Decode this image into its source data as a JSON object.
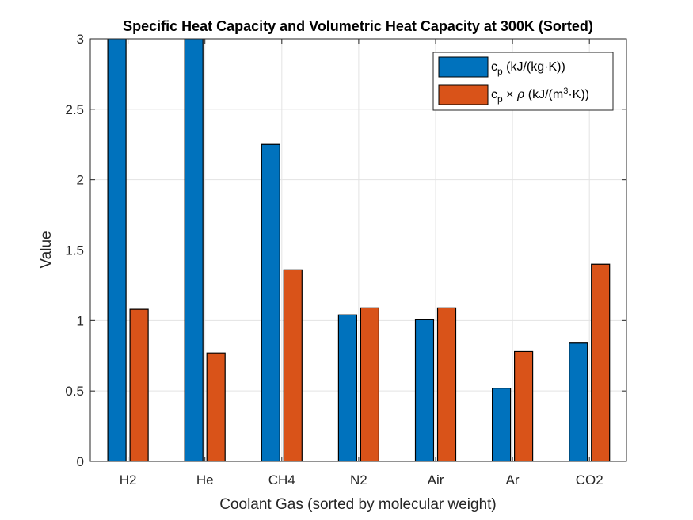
{
  "chart_data": {
    "type": "bar",
    "title": "Specific Heat Capacity and Volumetric Heat Capacity at 300K (Sorted)",
    "xlabel": "Coolant Gas (sorted by molecular weight)",
    "ylabel": "Value",
    "ylim": [
      0,
      3
    ],
    "yticks": [
      0,
      0.5,
      1,
      1.5,
      2,
      2.5,
      3
    ],
    "ytick_labels": [
      "0",
      "0.5",
      "1",
      "1.5",
      "2",
      "2.5",
      "3"
    ],
    "grid": true,
    "legend_position": "top-right",
    "categories": [
      "H2",
      "He",
      "CH4",
      "N2",
      "Air",
      "Ar",
      "CO2"
    ],
    "series": [
      {
        "name": "c_p (kJ/(kg·K))",
        "legend": {
          "base": "c",
          "sub": "p",
          "rest": " (kJ/(kg·K))"
        },
        "color": "#0072BD",
        "values": [
          3,
          3,
          2.25,
          1.04,
          1.005,
          0.52,
          0.84
        ],
        "clipped_at_ylim": [
          true,
          true,
          false,
          false,
          false,
          false,
          false
        ]
      },
      {
        "name": "c_p × ρ (kJ/(m³·K))",
        "legend": {
          "base": "c",
          "sub": "p",
          "mid": " × ",
          "rho": "ρ",
          "rest1": " (kJ/(m",
          "sup": "3",
          "rest2": "·K))"
        },
        "color": "#D95319",
        "values": [
          1.08,
          0.77,
          1.36,
          1.09,
          1.09,
          0.78,
          1.4
        ],
        "clipped_at_ylim": [
          false,
          false,
          false,
          false,
          false,
          false,
          false
        ]
      }
    ]
  }
}
